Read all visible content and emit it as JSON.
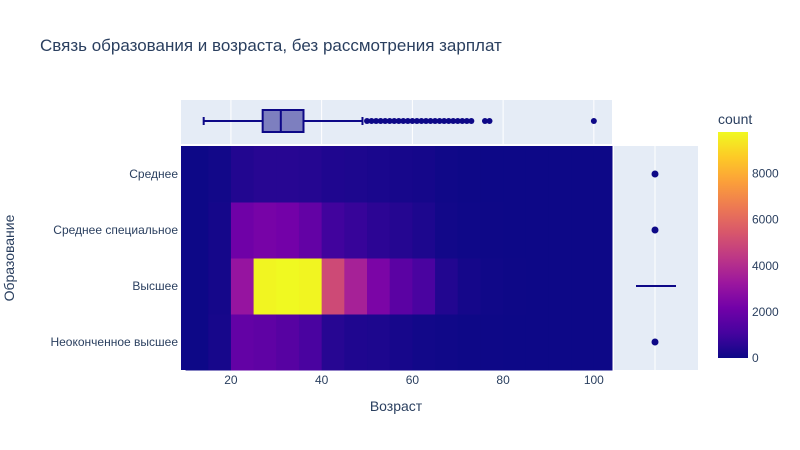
{
  "chart_data": {
    "type": "heatmap",
    "title": "Связь образования и возраста, без рассмотрения зарплат",
    "xlabel": "Возраст",
    "ylabel": "Образование",
    "xlim": [
      9,
      104
    ],
    "x_ticks": [
      20,
      40,
      60,
      80,
      100
    ],
    "x_bins_edges": [
      9,
      11,
      13,
      15,
      17,
      19,
      21,
      23,
      25,
      27,
      29,
      31,
      33,
      35,
      37,
      39,
      41,
      43,
      45,
      47,
      49,
      51,
      53,
      55,
      57,
      59,
      61,
      63,
      65,
      67,
      69,
      71,
      73,
      75,
      77,
      79,
      81,
      83,
      85,
      87,
      89,
      91,
      93,
      95,
      97,
      99,
      101,
      103,
      104
    ],
    "categories": [
      "Неоконченное высшее",
      "Высшее",
      "Среднее специальное",
      "Среднее"
    ],
    "z_matrix_bins_5yr": {
      "bin_edges": [
        10,
        15,
        20,
        25,
        30,
        35,
        40,
        45,
        50,
        55,
        60,
        65,
        70,
        75,
        80,
        85,
        90,
        95,
        100,
        105
      ],
      "Неоконченное высшее": [
        0,
        200,
        1800,
        1700,
        1500,
        1200,
        500,
        350,
        300,
        200,
        100,
        50,
        20,
        10,
        0,
        0,
        0,
        0,
        0
      ],
      "Высшее": [
        0,
        150,
        3100,
        9700,
        9800,
        9700,
        5000,
        3600,
        2400,
        1600,
        1200,
        400,
        150,
        50,
        20,
        0,
        0,
        0,
        0
      ],
      "Среднее специальное": [
        0,
        150,
        2100,
        2300,
        2200,
        1800,
        1000,
        800,
        600,
        450,
        300,
        100,
        40,
        10,
        0,
        0,
        0,
        0,
        0
      ],
      "Среднее": [
        0,
        100,
        400,
        500,
        500,
        450,
        350,
        300,
        250,
        200,
        150,
        60,
        20,
        5,
        0,
        0,
        0,
        0,
        0
      ]
    },
    "colorbar": {
      "title": "count",
      "range": [
        0,
        9800
      ],
      "ticks": [
        0,
        2000,
        4000,
        6000,
        8000
      ],
      "colorscale": "plasma"
    },
    "marginal_x_box": {
      "min": 14,
      "q1": 27,
      "median": 31,
      "q3": 36,
      "upper_fence": 49,
      "outliers": [
        50,
        51,
        52,
        53,
        54,
        55,
        56,
        57,
        58,
        59,
        60,
        61,
        62,
        63,
        64,
        65,
        66,
        67,
        68,
        69,
        70,
        71,
        72,
        73,
        76,
        77,
        100
      ]
    },
    "marginal_y_points": {
      "Среднее": "point",
      "Среднее специальное": "point",
      "Высшее": "line",
      "Неоконченное высшее": "point"
    },
    "colors": {
      "box_fill": "#7d7fbf",
      "box_line": "#0d0887",
      "plot_bg": "#e5ecf6",
      "text": "#2a3f5f"
    }
  }
}
